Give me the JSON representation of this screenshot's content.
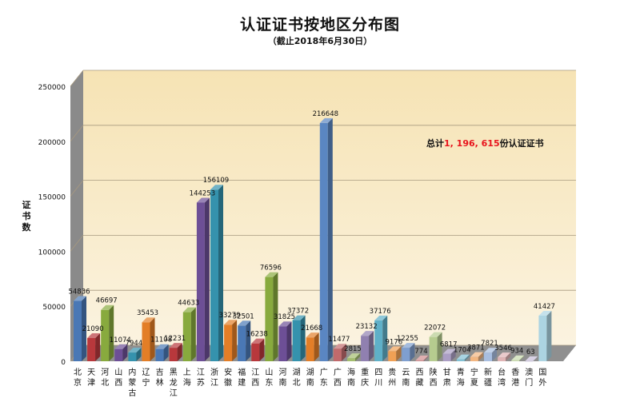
{
  "chart_data": {
    "type": "bar",
    "title": "认证证书按地区分布图",
    "subtitle": "（截止2018年6月30日）",
    "ylabel": "证书数",
    "xlabel": "",
    "ylim": [
      0,
      250000
    ],
    "yticks": [
      "0",
      "50000",
      "100000",
      "150000",
      "200000",
      "250000"
    ],
    "grid": true,
    "legend": "none",
    "annotation": {
      "prefix": "总计",
      "value": "1, 196, 615",
      "suffix": "份认证证书",
      "value_color": "#e8141c"
    },
    "categories": [
      "北京",
      "天津",
      "河北",
      "山西",
      "内蒙古",
      "辽宁",
      "吉林",
      "黑龙江",
      "上海",
      "江苏",
      "浙江",
      "安徽",
      "福建",
      "江西",
      "山东",
      "河南",
      "湖北",
      "湖南",
      "广东",
      "广西",
      "海南",
      "重庆",
      "四川",
      "贵州",
      "云南",
      "西藏",
      "陕西",
      "甘肃",
      "青海",
      "宁夏",
      "新疆",
      "台湾",
      "香港",
      "澳门",
      "国外"
    ],
    "values": [
      54836,
      21090,
      46697,
      11074,
      7944,
      35453,
      11108,
      12231,
      44633,
      144253,
      156109,
      33279,
      32501,
      16238,
      76596,
      31825,
      37372,
      21668,
      216648,
      11477,
      2815,
      23132,
      37176,
      9176,
      12255,
      774,
      22072,
      6817,
      1704,
      3871,
      7821,
      3546,
      934,
      63,
      41427
    ],
    "colors": [
      "#4a78b5",
      "#b8383c",
      "#88aa3e",
      "#6d4f96",
      "#3592ad",
      "#e37e27",
      "#4a78b5",
      "#b8383c",
      "#88aa3e",
      "#6d4f96",
      "#3592ad",
      "#e37e27",
      "#4a78b5",
      "#b8383c",
      "#88aa3e",
      "#6d4f96",
      "#3592ad",
      "#e37e27",
      "#5a86c2",
      "#c06a6c",
      "#a3bd6e",
      "#9080b0",
      "#5fb0c8",
      "#f0a055",
      "#7f9fcf",
      "#d08c8e",
      "#b6cc8f",
      "#ab9ec4",
      "#82c0d4",
      "#f3b680",
      "#a8bee0",
      "#dfb3b4",
      "#c9dbad",
      "#c6bdd8",
      "#acd4e2"
    ]
  }
}
